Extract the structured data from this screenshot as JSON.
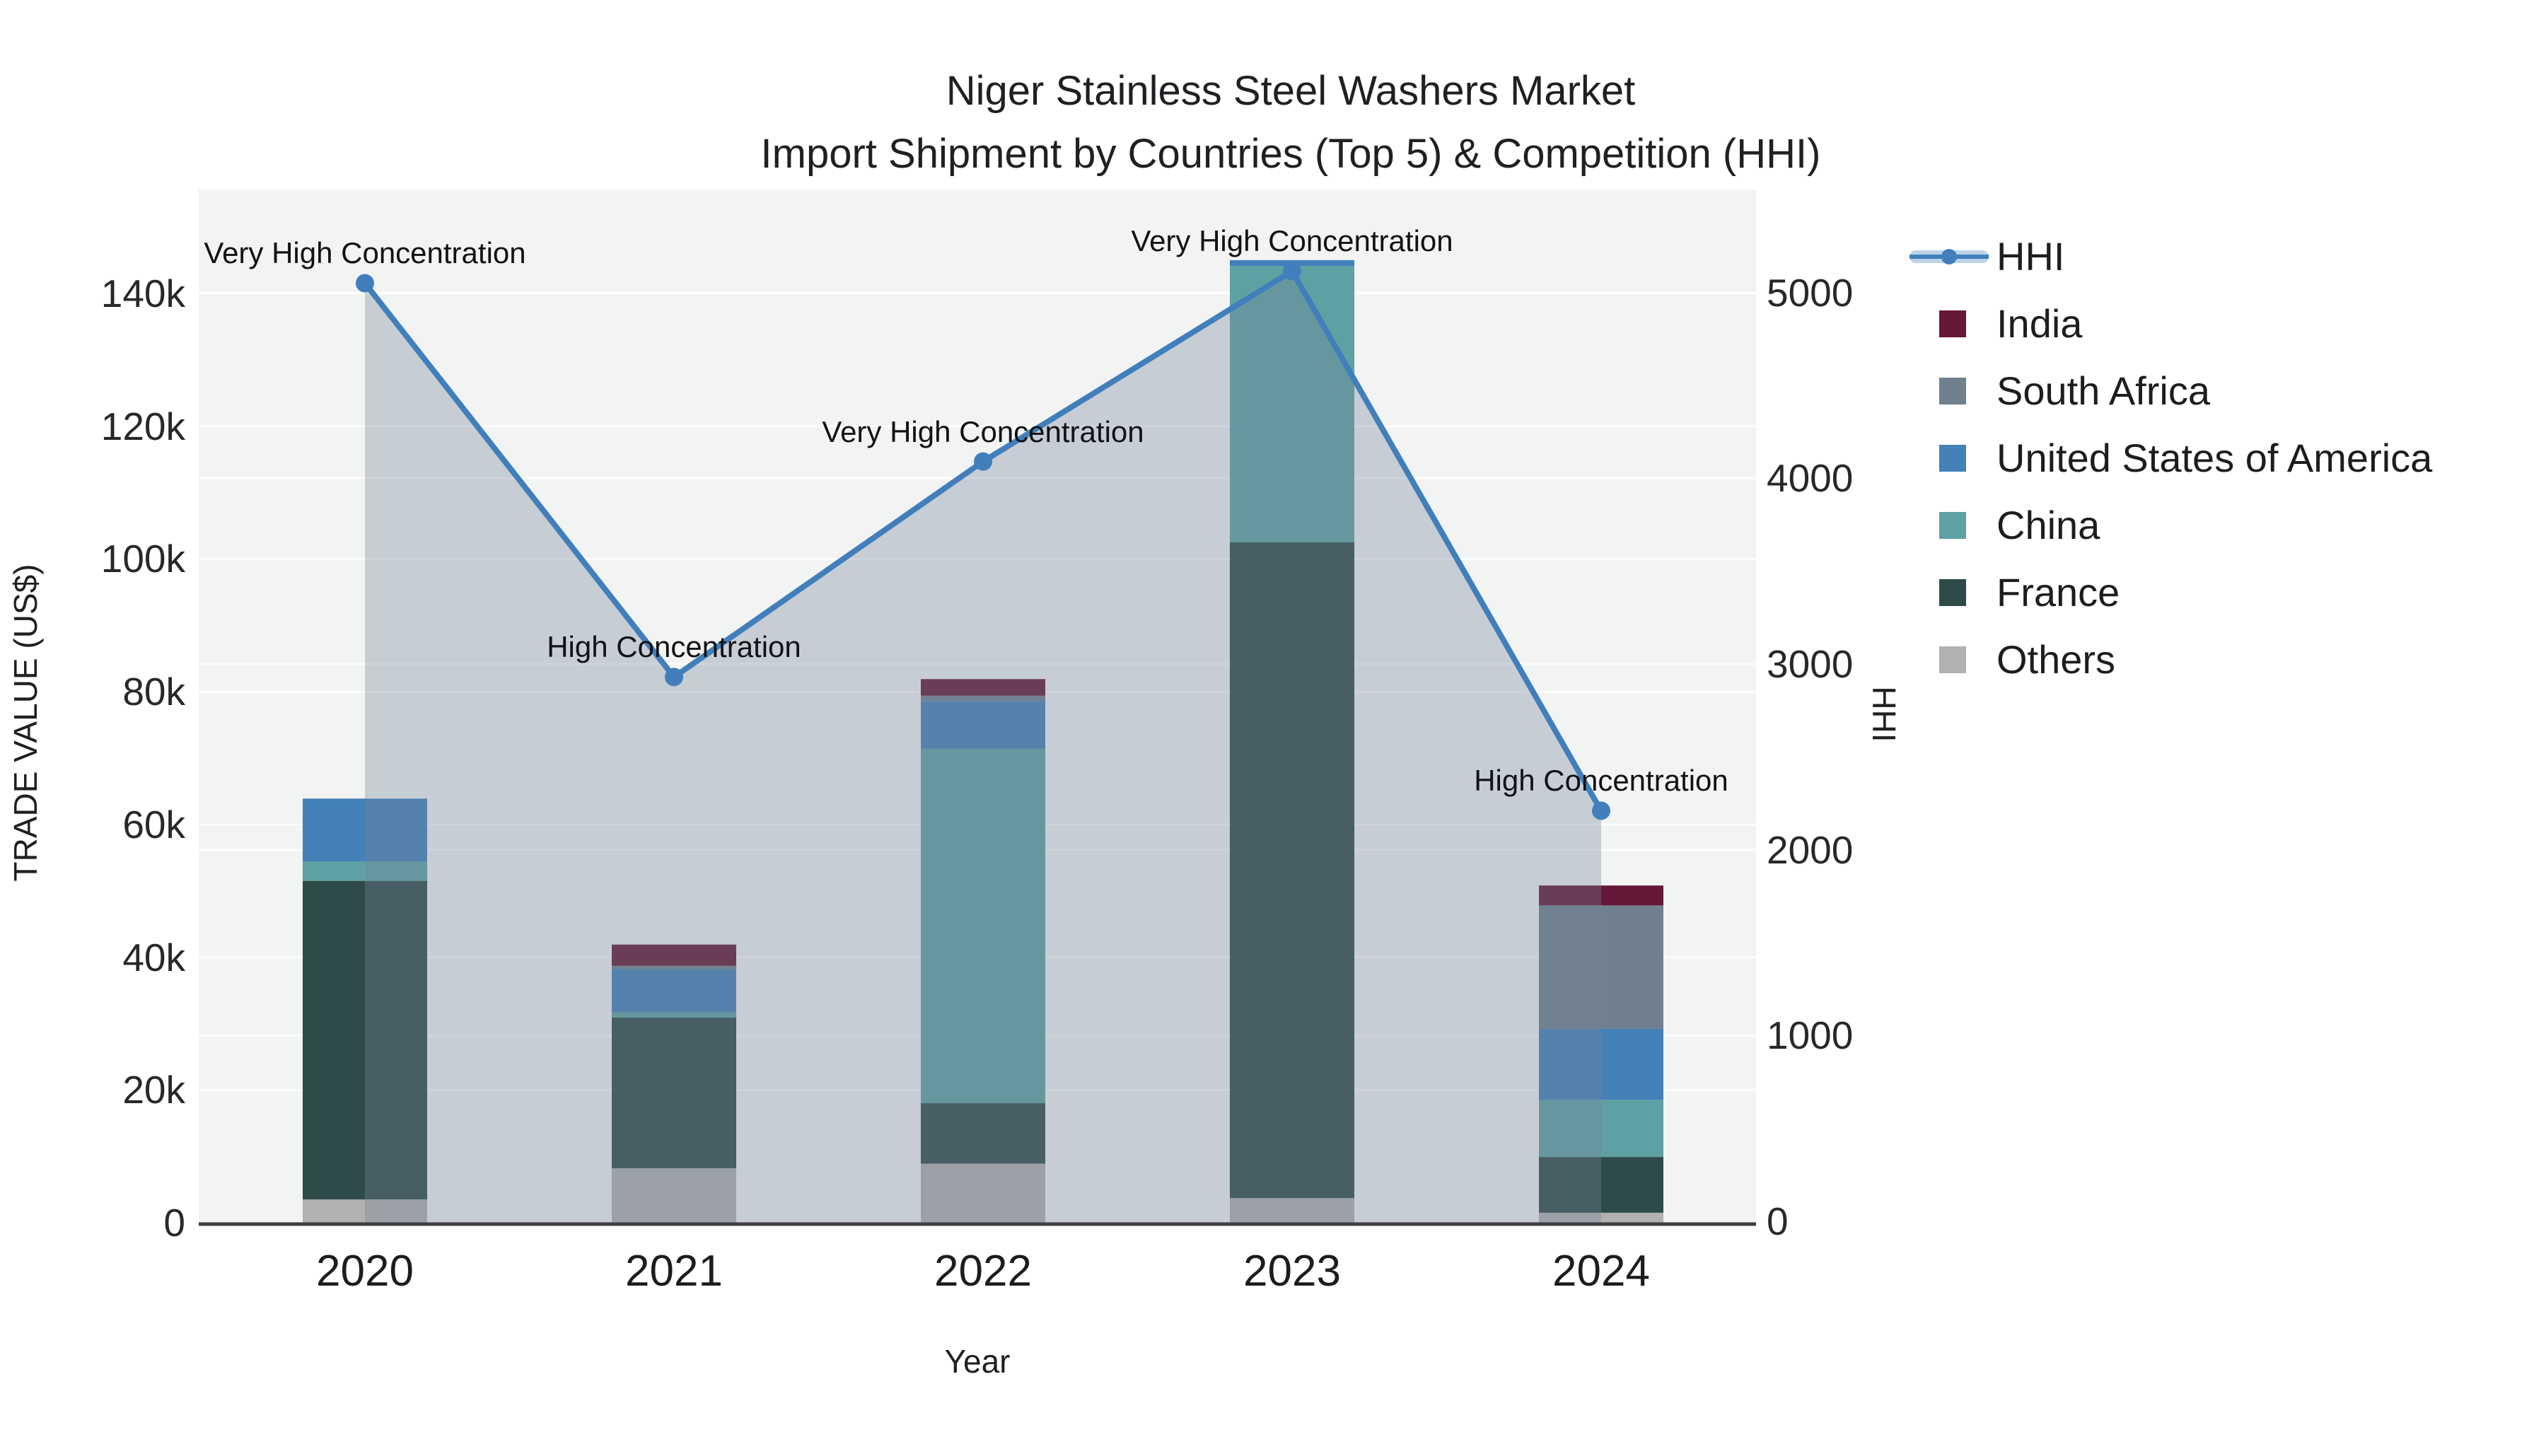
{
  "title": {
    "line1": "Niger Stainless Steel Washers Market",
    "line2": "Import Shipment by Countries (Top 5) & Competition (HHI)"
  },
  "axes": {
    "x": {
      "title": "Year",
      "tick_labels": [
        "2020",
        "2021",
        "2022",
        "2023",
        "2024"
      ]
    },
    "y_left": {
      "title": "TRADE VALUE (US$)",
      "tick_labels": [
        "0",
        "20k",
        "40k",
        "60k",
        "80k",
        "100k",
        "120k",
        "140k"
      ],
      "tick_values": [
        0,
        20000,
        40000,
        60000,
        80000,
        100000,
        120000,
        140000
      ],
      "range": [
        0,
        149000
      ]
    },
    "y_right": {
      "title": "HHI",
      "tick_labels": [
        "0",
        "1000",
        "2000",
        "3000",
        "4000",
        "5000"
      ],
      "tick_values": [
        0,
        1000,
        2000,
        3000,
        4000,
        5000
      ],
      "range": [
        0,
        5320
      ]
    }
  },
  "legend": {
    "items": [
      {
        "label": "HHI",
        "type": "line",
        "color": "#407fbb"
      },
      {
        "label": "India",
        "type": "square",
        "color": "#651838"
      },
      {
        "label": "South Africa",
        "type": "square",
        "color": "#71808f"
      },
      {
        "label": "United States of America",
        "type": "square",
        "color": "#4381b8"
      },
      {
        "label": "China",
        "type": "square",
        "color": "#5fa1a2"
      },
      {
        "label": "France",
        "type": "square",
        "color": "#2e4b49"
      },
      {
        "label": "Others",
        "type": "square",
        "color": "#b1b1b1"
      }
    ]
  },
  "chart_data": {
    "type": "bar",
    "subtype": "stacked-bars-with-line",
    "categories": [
      "2020",
      "2021",
      "2022",
      "2023",
      "2024"
    ],
    "stack_order_bottom_to_top": [
      "Others",
      "France",
      "China",
      "United States of America",
      "South Africa",
      "India"
    ],
    "series": [
      {
        "name": "India",
        "color": "#651838",
        "axis": "left",
        "values": [
          0,
          3200,
          2500,
          0,
          3000
        ]
      },
      {
        "name": "South Africa",
        "color": "#71808f",
        "axis": "left",
        "values": [
          0,
          500,
          800,
          0,
          18600
        ]
      },
      {
        "name": "United States of America",
        "color": "#4381b8",
        "axis": "left",
        "values": [
          9500,
          6500,
          7200,
          0,
          10700
        ]
      },
      {
        "name": "China",
        "color": "#5fa1a2",
        "axis": "left",
        "values": [
          2900,
          800,
          53400,
          42100,
          8600
        ]
      },
      {
        "name": "France",
        "color": "#2e4b49",
        "axis": "left",
        "values": [
          48000,
          22700,
          9100,
          98800,
          8400
        ]
      },
      {
        "name": "Others",
        "color": "#b1b1b1",
        "axis": "left",
        "values": [
          3500,
          8200,
          8900,
          3700,
          1500
        ]
      }
    ],
    "bar_totals": [
      63900,
      41900,
      81900,
      144600,
      50800
    ],
    "line_series": {
      "name": "HHI",
      "color": "#407fbb",
      "axis": "right",
      "values": [
        5050,
        2930,
        4090,
        5115,
        2210
      ],
      "area_fill": "rgba(117,131,152,0.34)",
      "marker": "circle"
    },
    "annotations": [
      {
        "category": "2020",
        "text": "Very High Concentration"
      },
      {
        "category": "2021",
        "text": "High Concentration"
      },
      {
        "category": "2022",
        "text": "Very High Concentration"
      },
      {
        "category": "2023",
        "text": "Very High Concentration"
      },
      {
        "category": "2024",
        "text": "High Concentration"
      }
    ],
    "title": "Niger Stainless Steel Washers Market Import Shipment by Countries (Top 5) & Competition (HHI)",
    "xlabel": "Year",
    "ylabel_left": "TRADE VALUE (US$)",
    "ylabel_right": "HHI",
    "plot_bg": "#f2f3f3",
    "grid_color": "#ffffff",
    "axis_line_color": "#3f3f42",
    "grid": "on",
    "legend_position": "right"
  }
}
